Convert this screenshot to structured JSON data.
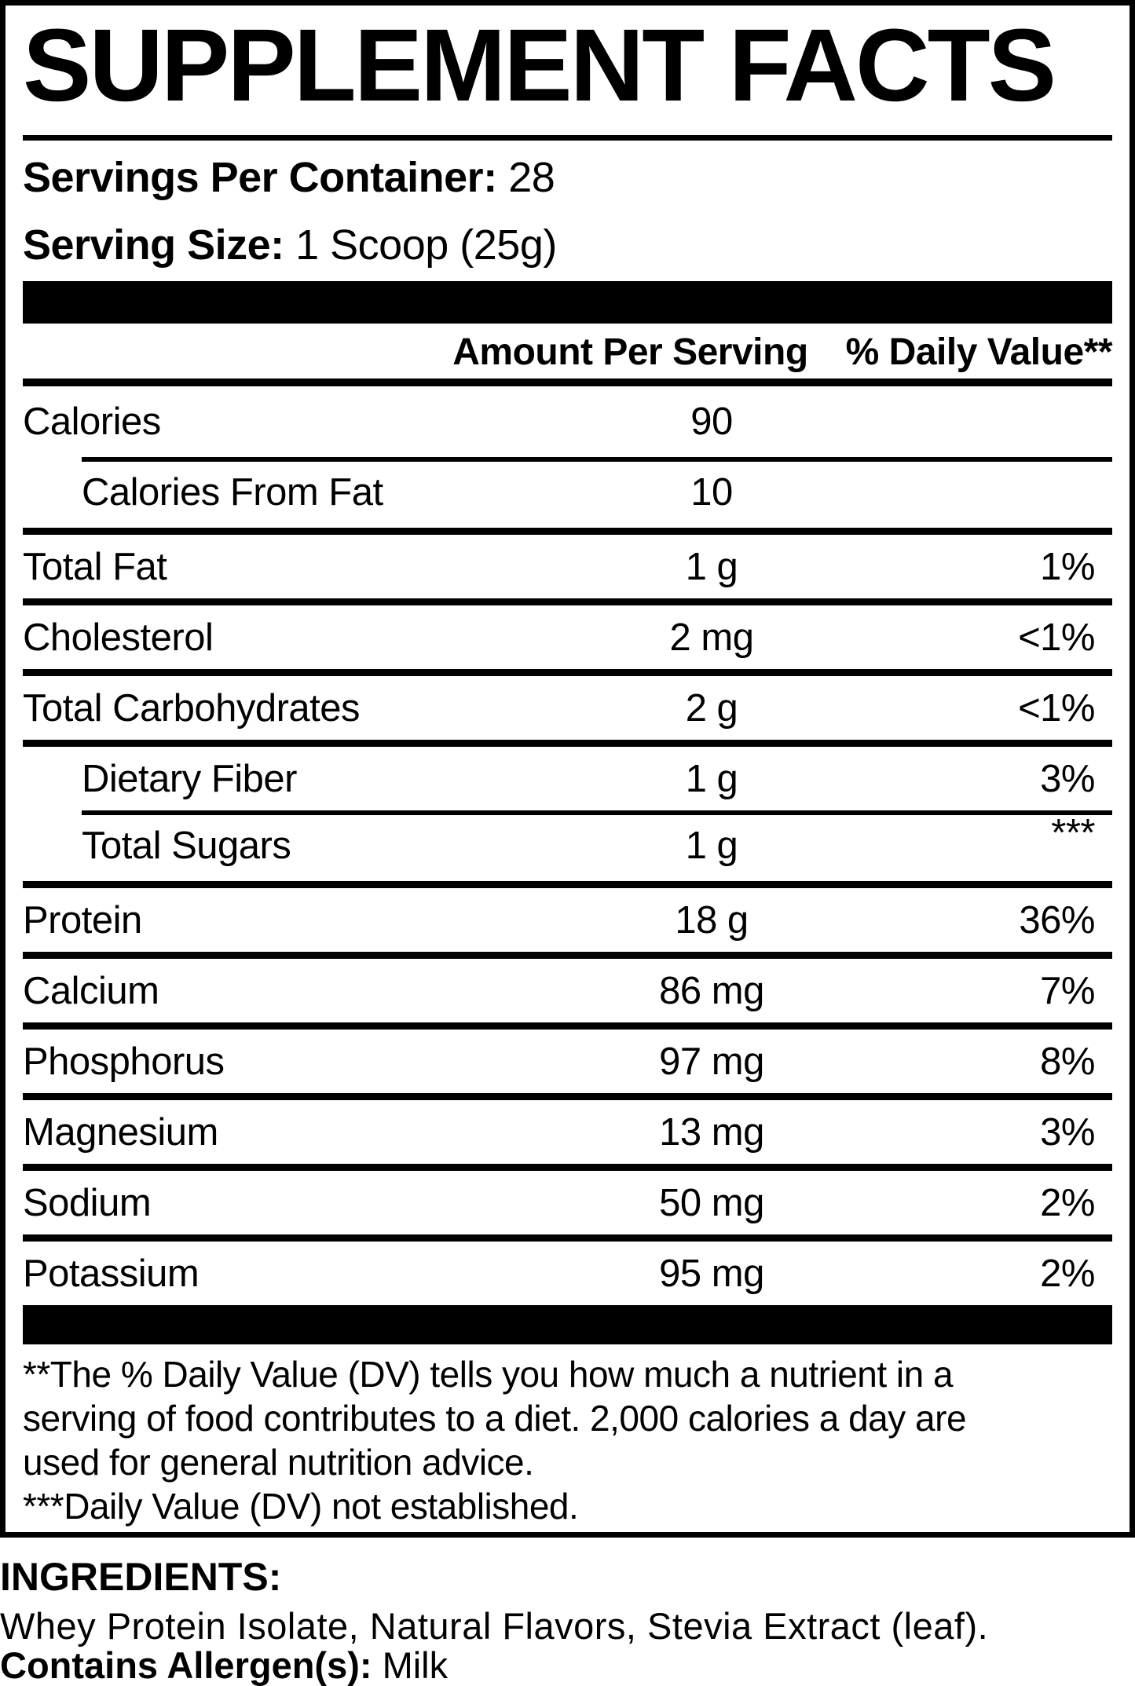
{
  "title": "SUPPLEMENT FACTS",
  "servings": {
    "label": "Servings Per Container:",
    "value": "28"
  },
  "serving_size": {
    "label": "Serving Size:",
    "value": "1 Scoop (25g)"
  },
  "table": {
    "amount_header": "Amount Per Serving",
    "dv_header": "% Daily Value**",
    "rows": [
      {
        "label": "Calories",
        "amount": "90",
        "dv": "",
        "indent": false,
        "sep": "none",
        "dv_raised": false
      },
      {
        "label": "Calories From Fat",
        "amount": "10",
        "dv": "",
        "indent": true,
        "sep": "indent",
        "dv_raised": false
      },
      {
        "label": "Total Fat",
        "amount": "1 g",
        "dv": "1%",
        "indent": false,
        "sep": "full",
        "dv_raised": false
      },
      {
        "label": "Cholesterol",
        "amount": "2 mg",
        "dv": "<1%",
        "indent": false,
        "sep": "full",
        "dv_raised": false
      },
      {
        "label": "Total Carbohydrates",
        "amount": "2 g",
        "dv": "<1%",
        "indent": false,
        "sep": "full",
        "dv_raised": false
      },
      {
        "label": "Dietary Fiber",
        "amount": "1 g",
        "dv": "3%",
        "indent": true,
        "sep": "full",
        "dv_raised": false
      },
      {
        "label": "Total Sugars",
        "amount": "1 g",
        "dv": "***",
        "indent": true,
        "sep": "indent",
        "dv_raised": true
      },
      {
        "label": "Protein",
        "amount": "18 g",
        "dv": "36%",
        "indent": false,
        "sep": "full",
        "dv_raised": false
      },
      {
        "label": "Calcium",
        "amount": "86 mg",
        "dv": "7%",
        "indent": false,
        "sep": "full",
        "dv_raised": false
      },
      {
        "label": "Phosphorus",
        "amount": "97 mg",
        "dv": "8%",
        "indent": false,
        "sep": "full",
        "dv_raised": false
      },
      {
        "label": "Magnesium",
        "amount": "13 mg",
        "dv": "3%",
        "indent": false,
        "sep": "full",
        "dv_raised": false
      },
      {
        "label": "Sodium",
        "amount": "50 mg",
        "dv": "2%",
        "indent": false,
        "sep": "full",
        "dv_raised": false
      },
      {
        "label": "Potassium",
        "amount": "95 mg",
        "dv": "2%",
        "indent": false,
        "sep": "full",
        "dv_raised": false
      }
    ]
  },
  "footnotes": {
    "lines": [
      "**The % Daily Value (DV) tells you how much a nutrient in a",
      "serving of food contributes to a diet. 2,000 calories a day are",
      "used for general nutrition advice.",
      "***Daily Value (DV) not established."
    ]
  },
  "ingredients": {
    "heading": "INGREDIENTS:",
    "list": "Whey Protein Isolate, Natural Flavors, Stevia Extract (leaf).",
    "allergen_label": "Contains Allergen(s):",
    "allergen_value": "Milk"
  },
  "colors": {
    "ink": "#000000",
    "paper": "#ffffff"
  }
}
